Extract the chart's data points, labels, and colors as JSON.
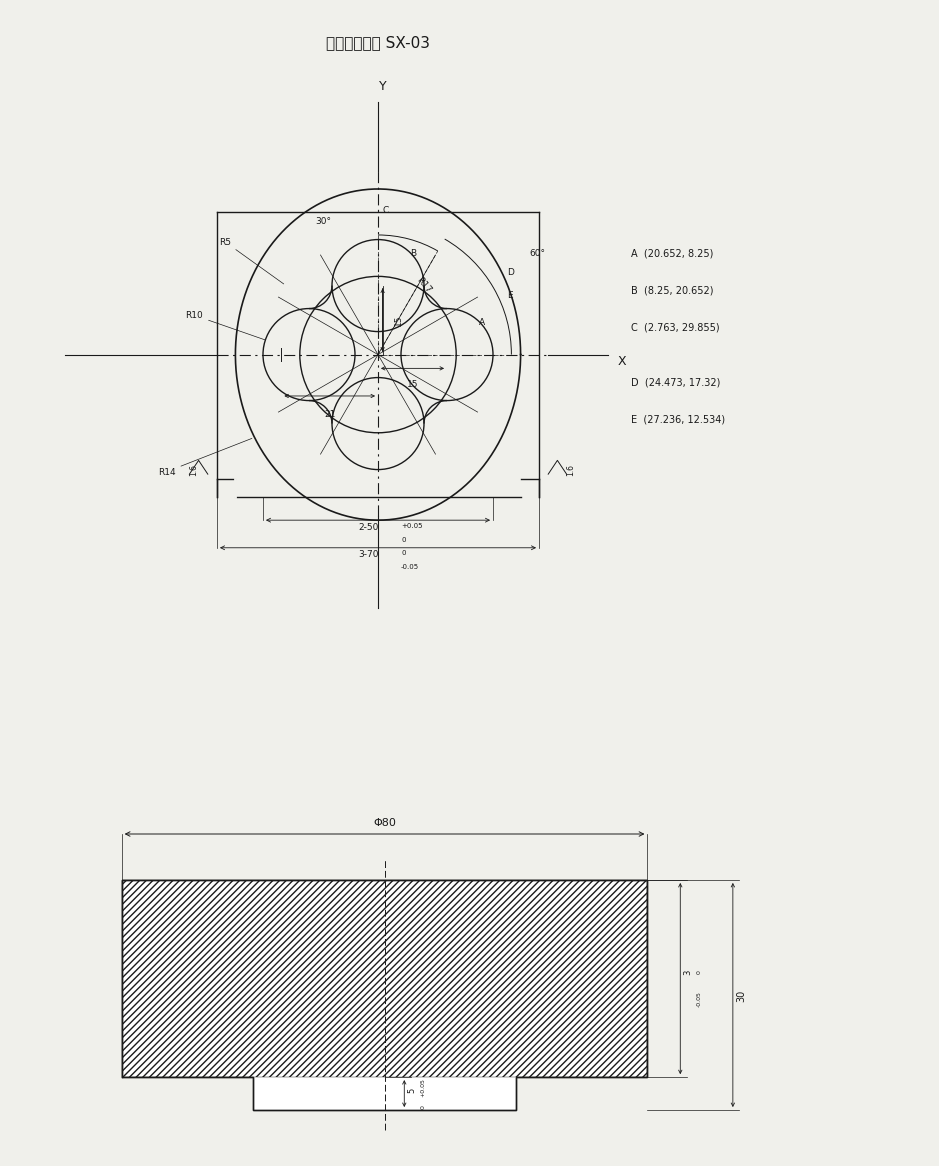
{
  "title": "数控铣工图纸 SX-03",
  "title_fontsize": 11,
  "bg": "#f0f0eb",
  "black": "#1a1a1a",
  "annotations_A": "A  (20.652, 8.25)",
  "annotations_B": "B  (8.25, 20.652)",
  "annotations_C": "C  (2.763, 29.855)",
  "annotations_D": "D  (24.473, 17.32)",
  "annotations_E": "E  (27.236, 12.534)"
}
